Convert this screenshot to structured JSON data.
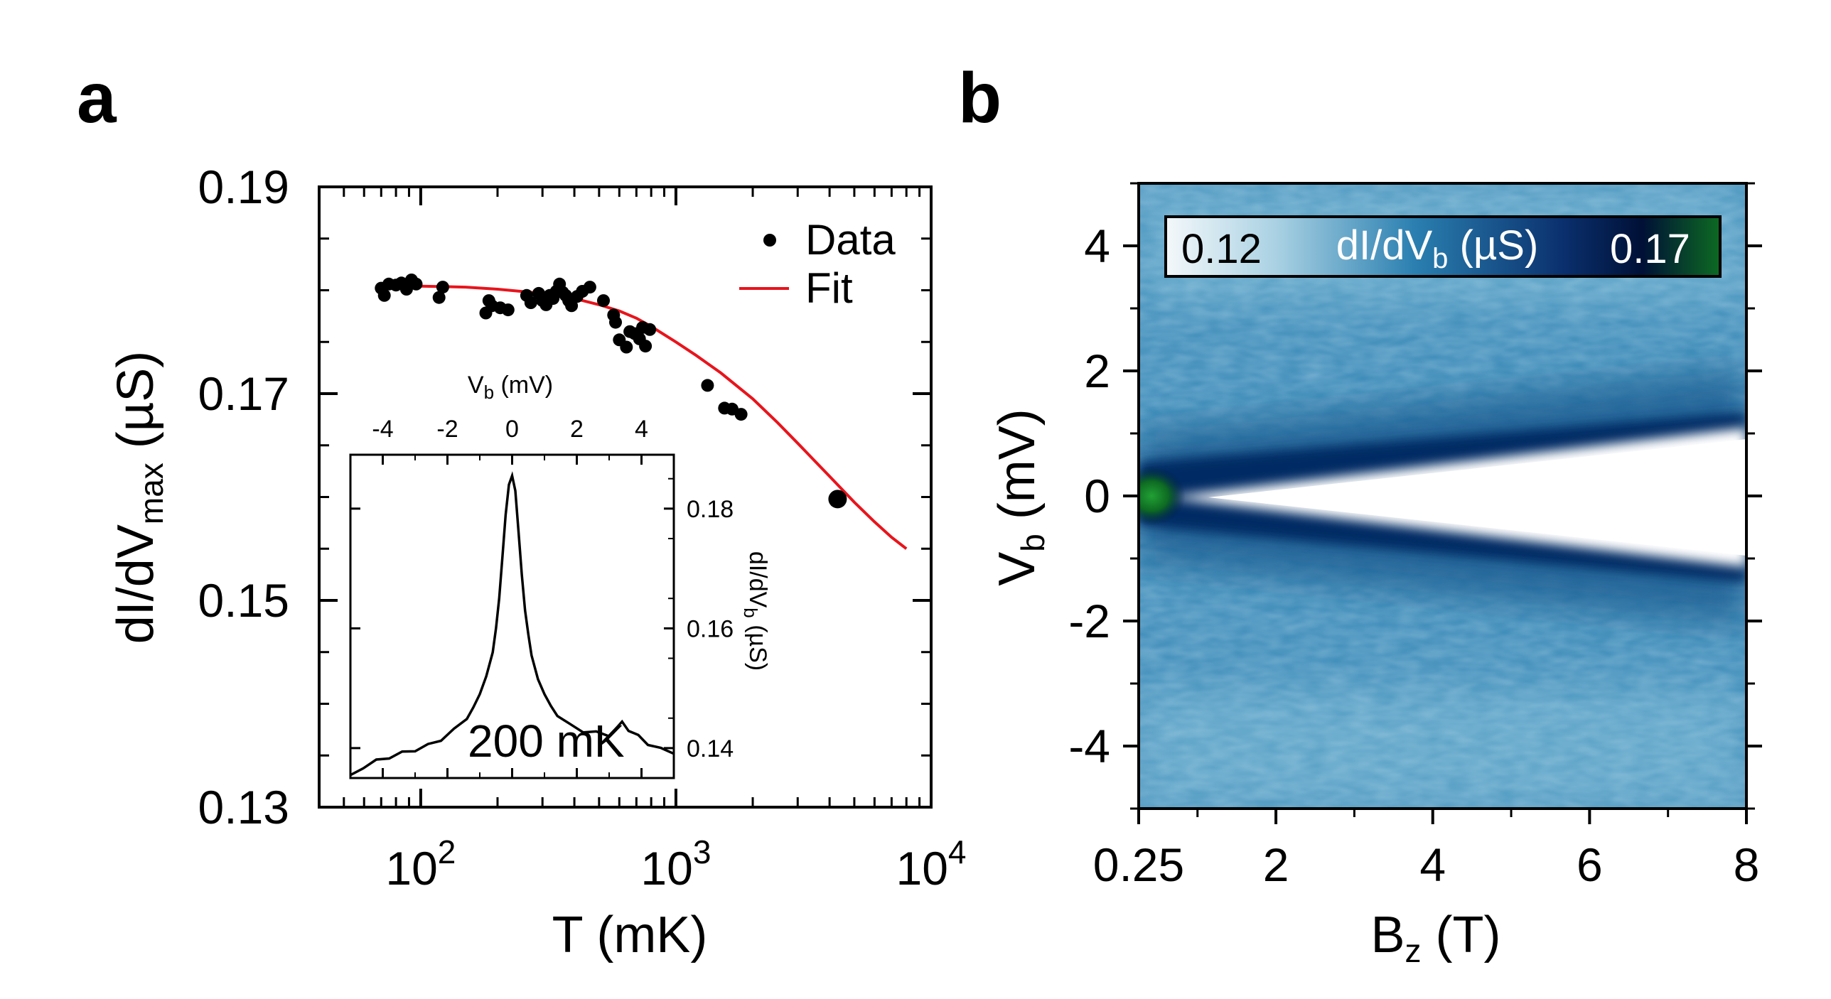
{
  "panel_a": {
    "letter": "a",
    "inset_temperature": "200 mK",
    "legend": {
      "data": "Data",
      "fit": "Fit"
    }
  },
  "panel_b": {
    "letter": "b",
    "colorbar": {
      "min_label": "0.12",
      "max_label": "0.17",
      "title_main": "dI/dV",
      "title_sub": "b",
      "title_unit": " (µS)"
    }
  },
  "colors": {
    "data": "#000000",
    "fit": "#e8141c",
    "cmap": [
      "#f4f8fa",
      "#6fb2d0",
      "#2878a8",
      "#0a2f6c",
      "#001036",
      "#0d6a22"
    ]
  },
  "chart_data": [
    {
      "id": "main",
      "type": "scatter",
      "title": "",
      "xlabel": "T (mK)",
      "ylabel_main": "dI/dV",
      "ylabel_sub": "max",
      "ylabel_unit": " (µS)",
      "xscale": "log",
      "xlim": [
        40,
        10000
      ],
      "ylim": [
        0.13,
        0.19
      ],
      "yticks": [
        0.13,
        0.15,
        0.17,
        0.19
      ],
      "ytick_labels": [
        "0.13",
        "0.15",
        "0.17",
        "0.19"
      ],
      "xticks": [
        100,
        1000,
        10000
      ],
      "xtick_base": "10",
      "xtick_exps": [
        "2",
        "3",
        "4"
      ],
      "legend_position": "top-right",
      "series": [
        {
          "name": "Data",
          "style": "points",
          "x": [
            70,
            72,
            75,
            80,
            84,
            88,
            92,
            96,
            118,
            122,
            180,
            185,
            190,
            205,
            220,
            260,
            270,
            290,
            300,
            310,
            320,
            330,
            340,
            350,
            360,
            370,
            380,
            390,
            410,
            430,
            460,
            520,
            570,
            580,
            600,
            640,
            660,
            690,
            720,
            740,
            760,
            790,
            1330,
            1550,
            1660,
            1800,
            4300
          ],
          "y": [
            0.1802,
            0.1795,
            0.1806,
            0.1805,
            0.1807,
            0.1801,
            0.181,
            0.1806,
            0.1793,
            0.1803,
            0.1778,
            0.179,
            0.1785,
            0.1783,
            0.1781,
            0.1795,
            0.1788,
            0.1797,
            0.179,
            0.1786,
            0.1795,
            0.1792,
            0.1799,
            0.1806,
            0.1798,
            0.1795,
            0.179,
            0.1785,
            0.1794,
            0.1799,
            0.1803,
            0.179,
            0.1776,
            0.1769,
            0.1752,
            0.1745,
            0.176,
            0.1758,
            0.1753,
            0.1764,
            0.1746,
            0.1762,
            0.1708,
            0.1686,
            0.1685,
            0.168,
            0.1598
          ]
        },
        {
          "name": "Fit",
          "style": "line",
          "x": [
            70,
            100,
            150,
            200,
            300,
            400,
            500,
            600,
            700,
            800,
            1000,
            1200,
            1500,
            2000,
            2500,
            3000,
            4000,
            5000,
            6000,
            7000,
            8000
          ],
          "y": [
            0.1805,
            0.1804,
            0.1803,
            0.1801,
            0.1797,
            0.1792,
            0.1786,
            0.178,
            0.1773,
            0.1765,
            0.175,
            0.1737,
            0.172,
            0.1695,
            0.1672,
            0.1652,
            0.162,
            0.1595,
            0.1576,
            0.1561,
            0.155
          ]
        }
      ]
    },
    {
      "id": "inset",
      "type": "line",
      "title": "",
      "xlabel_main": "V",
      "xlabel_sub": "b",
      "xlabel_unit": " (mV)",
      "ylabel_main": "dI/dV",
      "ylabel_sub": "b",
      "ylabel_unit": " (µS)",
      "xlim": [
        -5,
        5
      ],
      "ylim": [
        0.135,
        0.189
      ],
      "xticks": [
        -4,
        -2,
        0,
        2,
        4
      ],
      "xtick_labels": [
        "-4",
        "-2",
        "0",
        "2",
        "4"
      ],
      "yticks": [
        0.14,
        0.16,
        0.18
      ],
      "ytick_labels": [
        "0.14",
        "0.16",
        "0.18"
      ],
      "series": [
        {
          "name": "dI/dVb at 200 mK",
          "x": [
            -5,
            -4.6,
            -4.2,
            -3.8,
            -3.4,
            -3.0,
            -2.6,
            -2.2,
            -1.8,
            -1.4,
            -1.2,
            -1.0,
            -0.8,
            -0.6,
            -0.5,
            -0.4,
            -0.3,
            -0.2,
            -0.1,
            0,
            0.1,
            0.2,
            0.3,
            0.4,
            0.5,
            0.6,
            0.8,
            1.0,
            1.2,
            1.4,
            1.8,
            2.2,
            2.6,
            3.0,
            3.4,
            3.6,
            3.9,
            4.2,
            4.6,
            5.0
          ],
          "y": [
            0.1355,
            0.137,
            0.1378,
            0.1385,
            0.139,
            0.1398,
            0.1405,
            0.1415,
            0.143,
            0.145,
            0.1468,
            0.149,
            0.152,
            0.156,
            0.16,
            0.165,
            0.172,
            0.179,
            0.184,
            0.1855,
            0.183,
            0.176,
            0.169,
            0.163,
            0.159,
            0.1555,
            0.1515,
            0.149,
            0.1468,
            0.1455,
            0.144,
            0.143,
            0.1425,
            0.1422,
            0.144,
            0.1432,
            0.142,
            0.1408,
            0.1398,
            0.1392
          ]
        }
      ]
    },
    {
      "id": "map",
      "type": "heatmap",
      "title": "",
      "xlabel_main": "B",
      "xlabel_sub": "z",
      "xlabel_unit": " (T)",
      "ylabel_main": "V",
      "ylabel_sub": "b",
      "ylabel_unit": " (mV)",
      "xlim": [
        0.25,
        8
      ],
      "ylim": [
        -5,
        5
      ],
      "xticks": [
        0.25,
        2,
        4,
        6,
        8
      ],
      "xtick_labels": [
        "0.25",
        "2",
        "4",
        "6",
        "8"
      ],
      "yticks": [
        -4,
        -2,
        0,
        2,
        4
      ],
      "ytick_labels": [
        "-4",
        "-2",
        "0",
        "2",
        "4"
      ],
      "zlim": [
        0.12,
        0.17
      ],
      "zlabel": "dI/dVb (µS)",
      "features": {
        "zero_bias_peak_at_B": 0.25,
        "zero_bias_peak_value": 0.17,
        "peak_split_center_mV": 0.0,
        "split_half_width_mV_at_8T": 0.9,
        "background_high_bias": 0.135,
        "background_near_zero": 0.155
      }
    }
  ]
}
